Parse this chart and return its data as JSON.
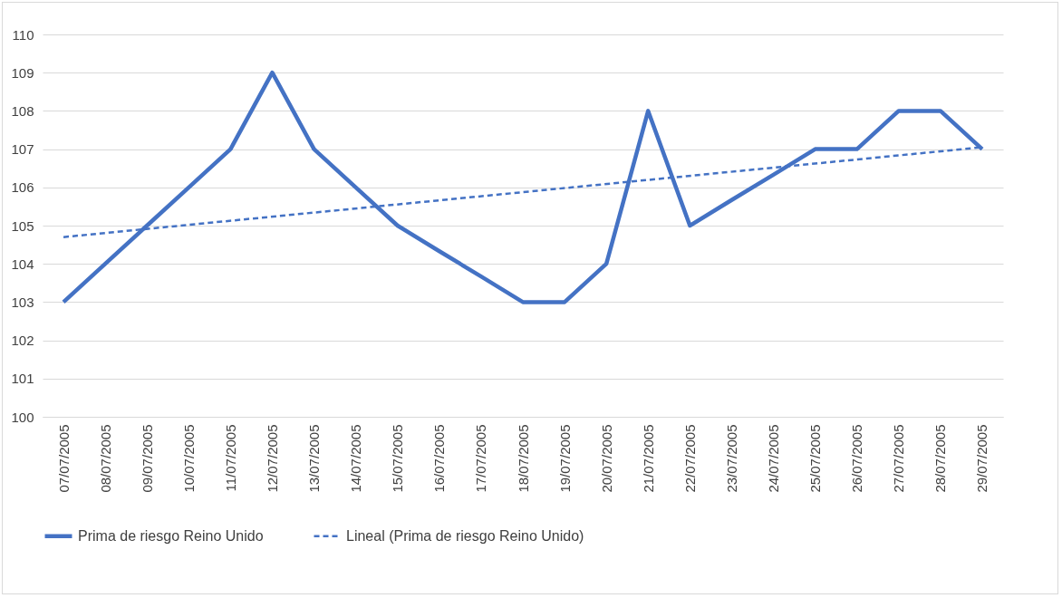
{
  "chart_data": {
    "type": "line",
    "categories": [
      "07/07/2005",
      "08/07/2005",
      "09/07/2005",
      "10/07/2005",
      "11/07/2005",
      "12/07/2005",
      "13/07/2005",
      "14/07/2005",
      "15/07/2005",
      "16/07/2005",
      "17/07/2005",
      "18/07/2005",
      "19/07/2005",
      "20/07/2005",
      "21/07/2005",
      "22/07/2005",
      "23/07/2005",
      "24/07/2005",
      "25/07/2005",
      "26/07/2005",
      "27/07/2005",
      "28/07/2005",
      "29/07/2005"
    ],
    "series": [
      {
        "name": "Prima de riesgo Reino Unido",
        "color": "#4472c4",
        "line_style": "solid",
        "values": [
          103,
          104,
          105,
          106,
          107,
          109,
          107,
          106,
          105,
          104.33,
          103.67,
          103,
          103,
          104,
          108,
          105,
          105.67,
          106.33,
          107,
          107,
          108,
          108,
          107
        ]
      },
      {
        "name": "Lineal (Prima de riesgo Reino Unido)",
        "type": "line",
        "color": "#4472c4",
        "line_style": "dashed",
        "x": [
          "07/07/2005",
          "29/07/2005"
        ],
        "values": [
          104.7,
          107.05
        ]
      }
    ],
    "ylim": [
      100,
      110
    ],
    "yticks": [
      100,
      101,
      102,
      103,
      104,
      105,
      106,
      107,
      108,
      109,
      110
    ],
    "grid": "y",
    "legend": "bottom",
    "marker": "none"
  }
}
